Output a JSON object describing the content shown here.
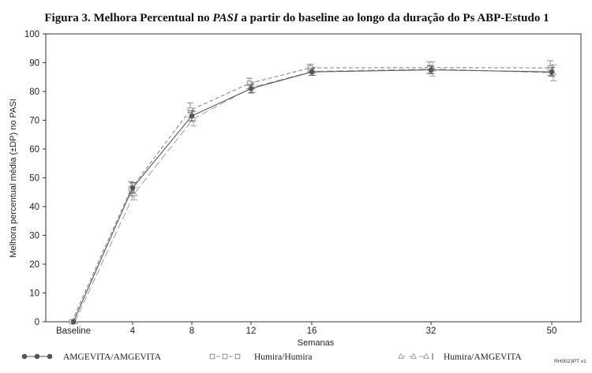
{
  "chart_data": {
    "type": "line",
    "title_prefix": "Figura 3. Melhora Percentual no ",
    "title_italic": "PASI",
    "title_suffix": " a partir do baseline ao longo da duração do Ps ABP-Estudo 1",
    "xlabel": "Semanas",
    "ylabel": "Melhora percentual média (±DP) no PASI",
    "categories": [
      "Baseline",
      "4",
      "8",
      "12",
      "16",
      "32",
      "50"
    ],
    "ylim": [
      0,
      100
    ],
    "yticks": [
      0,
      10,
      20,
      30,
      40,
      50,
      60,
      70,
      80,
      90,
      100
    ],
    "grid": false,
    "legend_position": "bottom",
    "footer_code": "RH0023PT v1",
    "series": [
      {
        "name": "AMGEVITA/AMGEVITA",
        "marker": "filled-circle",
        "line": "solid",
        "color": "#555555",
        "values": [
          0,
          46.5,
          71.5,
          81.0,
          86.8,
          87.5,
          86.8
        ],
        "errors": [
          0,
          1.8,
          1.8,
          1.5,
          1.2,
          1.3,
          1.5
        ]
      },
      {
        "name": "Humira/Humira",
        "marker": "open-square",
        "line": "dashed",
        "color": "#8a8a8a",
        "values": [
          0,
          46.2,
          73.5,
          82.8,
          88.2,
          88.3,
          88.2
        ],
        "errors": [
          0,
          2.5,
          2.5,
          1.8,
          1.3,
          2.0,
          2.5
        ]
      },
      {
        "name": "Humira/AMGEVITA",
        "marker": "open-triangle",
        "line": "long-dash",
        "color": "#a5a5a5",
        "values": [
          0,
          44.5,
          70.5,
          81.5,
          87.0,
          87.8,
          86.5
        ],
        "errors": [
          0,
          2.2,
          2.5,
          1.8,
          1.4,
          2.5,
          2.8
        ]
      }
    ]
  }
}
